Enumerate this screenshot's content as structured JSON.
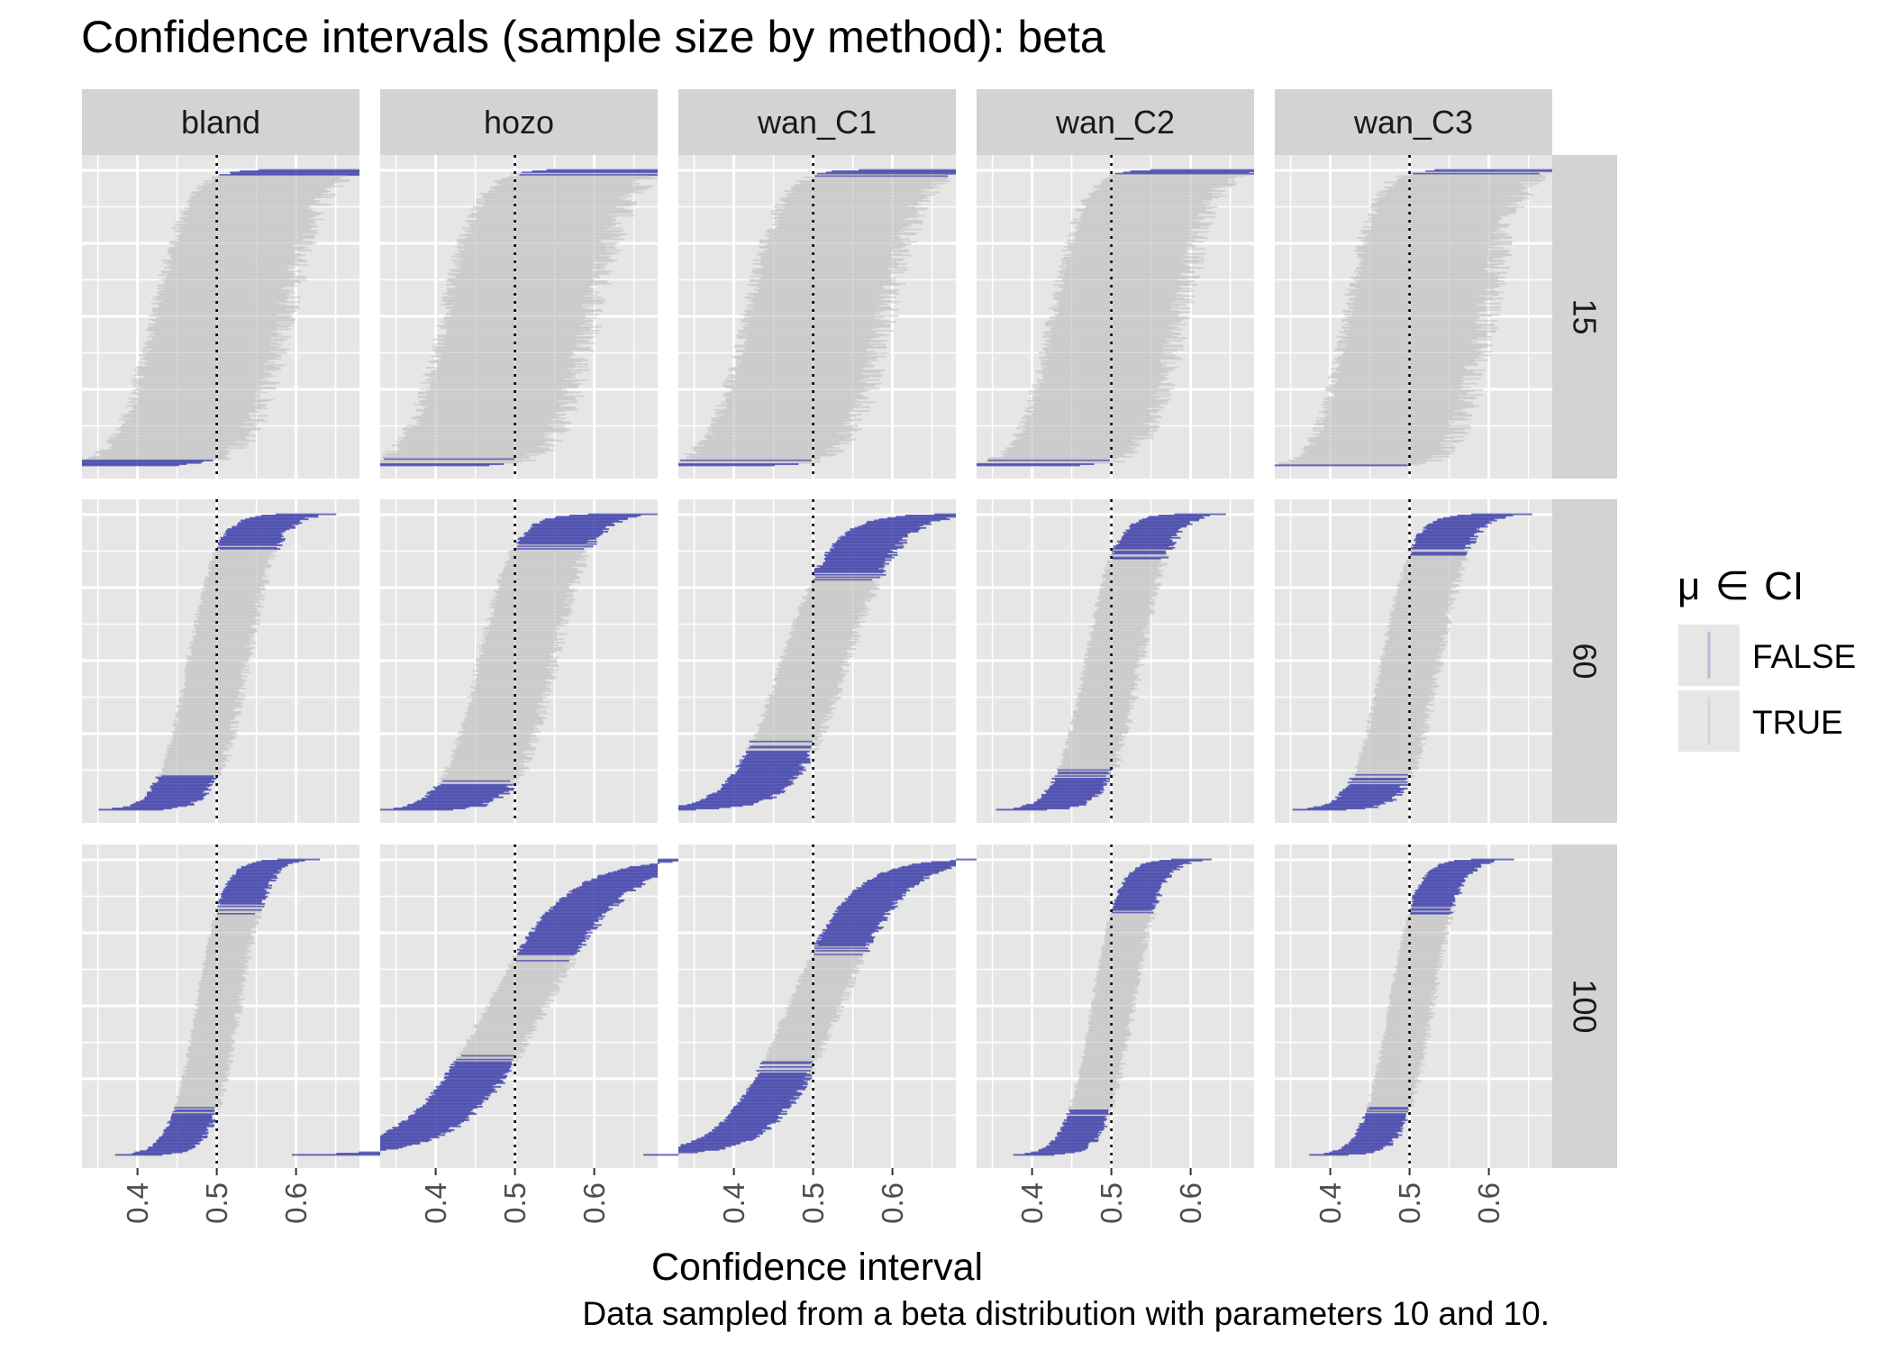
{
  "chart_data": {
    "type": "interval_caterpillar_facets",
    "title": "Confidence intervals (sample size by method): beta",
    "caption": "Data sampled from a beta distribution with parameters 10 and 10.",
    "xlabel": "Confidence interval",
    "ylabel": "",
    "xlim": [
      0.33,
      0.68
    ],
    "x_ticks": [
      0.4,
      0.5,
      0.6
    ],
    "x_tick_labels": [
      "0.4",
      "0.5",
      "0.6"
    ],
    "true_mean": 0.5,
    "grid": true,
    "columns": [
      "bland",
      "hozo",
      "wan_C1",
      "wan_C2",
      "wan_C3"
    ],
    "rows": [
      "15",
      "60",
      "100"
    ],
    "legend": {
      "title_symbol": "μ",
      "title_relation": "∈",
      "title_text": "CI",
      "position": "right",
      "entries": [
        {
          "label": "FALSE",
          "color": "#3a3ba8"
        },
        {
          "label": "TRUE",
          "color": "#bdbdbd"
        }
      ]
    },
    "colors": {
      "false": "#3a3ba8",
      "true": "#c0c0c0",
      "panel_bg": "#e6e6e6",
      "strip_bg": "#d3d3d3",
      "grid": "#ffffff"
    },
    "panels": [
      {
        "row": "15",
        "col": "bland",
        "halfwidth": 0.08,
        "halfwidth_right": 0.085,
        "miss_low": 0.06,
        "miss_high": 0.065
      },
      {
        "row": "15",
        "col": "hozo",
        "halfwidth": 0.09,
        "halfwidth_right": 0.095,
        "miss_low": 0.06,
        "miss_high": 0.065
      },
      {
        "row": "15",
        "col": "wan_C1",
        "halfwidth": 0.085,
        "halfwidth_right": 0.09,
        "miss_low": 0.06,
        "miss_high": 0.065
      },
      {
        "row": "15",
        "col": "wan_C2",
        "halfwidth": 0.075,
        "halfwidth_right": 0.085,
        "miss_low": 0.055,
        "miss_high": 0.06
      },
      {
        "row": "15",
        "col": "wan_C3",
        "halfwidth": 0.08,
        "halfwidth_right": 0.095,
        "miss_low": 0.05,
        "miss_high": 0.055
      },
      {
        "row": "60",
        "col": "bland",
        "halfwidth": 0.036,
        "halfwidth_right": 0.038,
        "miss_low": 0.05,
        "miss_high": 0.05
      },
      {
        "row": "60",
        "col": "hozo",
        "halfwidth": 0.046,
        "halfwidth_right": 0.048,
        "miss_low": 0.06,
        "miss_high": 0.06
      },
      {
        "row": "60",
        "col": "wan_C1",
        "halfwidth": 0.04,
        "halfwidth_right": 0.042,
        "miss_low": 0.085,
        "miss_high": 0.085
      },
      {
        "row": "60",
        "col": "wan_C2",
        "halfwidth": 0.033,
        "halfwidth_right": 0.036,
        "miss_low": 0.05,
        "miss_high": 0.05
      },
      {
        "row": "60",
        "col": "wan_C3",
        "halfwidth": 0.035,
        "halfwidth_right": 0.037,
        "miss_low": 0.05,
        "miss_high": 0.055
      },
      {
        "row": "100",
        "col": "bland",
        "halfwidth": 0.026,
        "halfwidth_right": 0.028,
        "miss_low": 0.045,
        "miss_high": 0.045
      },
      {
        "row": "100",
        "col": "hozo",
        "halfwidth": 0.036,
        "halfwidth_right": 0.038,
        "miss_low": 0.14,
        "miss_high": 0.14
      },
      {
        "row": "100",
        "col": "wan_C1",
        "halfwidth": 0.032,
        "halfwidth_right": 0.034,
        "miss_low": 0.11,
        "miss_high": 0.11
      },
      {
        "row": "100",
        "col": "wan_C2",
        "halfwidth": 0.025,
        "halfwidth_right": 0.027,
        "miss_low": 0.045,
        "miss_high": 0.045
      },
      {
        "row": "100",
        "col": "wan_C3",
        "halfwidth": 0.026,
        "halfwidth_right": 0.028,
        "miss_low": 0.045,
        "miss_high": 0.045
      }
    ]
  }
}
